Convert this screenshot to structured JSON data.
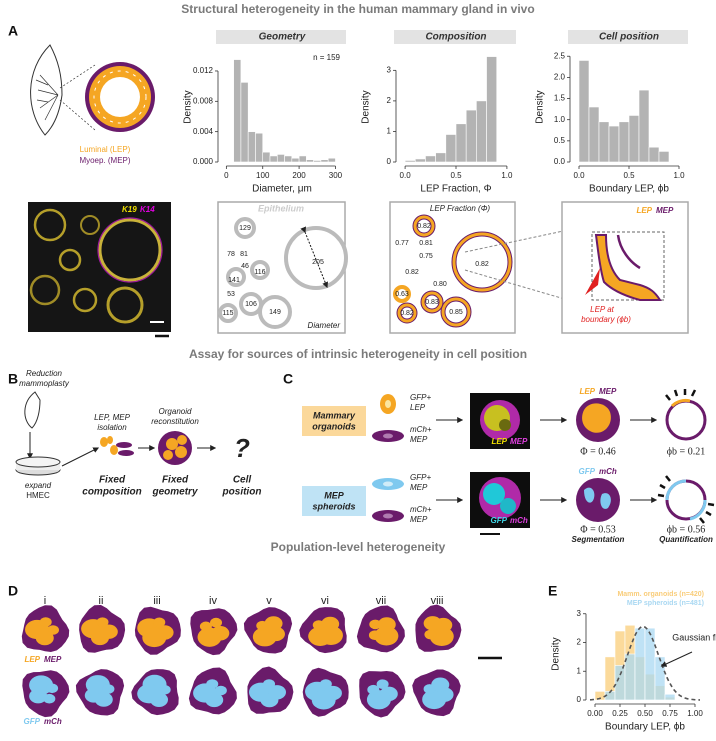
{
  "sections": [
    "Structural heterogeneity in the human mammary gland in vivo",
    "Assay for sources of intrinsic heterogeneity in cell position",
    "Population-level heterogeneity"
  ],
  "panel_a": {
    "label": "A",
    "schematic": {
      "luminal": "Luminal (LEP)",
      "myoep": "Myoep. (MEP)"
    },
    "charts": [
      {
        "type": "histogram",
        "header": "Geometry",
        "ylabel": "Density",
        "xlabel": "Diameter, μm",
        "note": "n = 159",
        "bins": [
          20,
          40,
          60,
          80,
          100,
          120,
          140,
          160,
          180,
          200,
          220,
          240,
          260,
          280,
          300
        ],
        "values": [
          0.0135,
          0.0105,
          0.004,
          0.0038,
          0.0013,
          0.0008,
          0.001,
          0.0008,
          0.0005,
          0.0008,
          0.0003,
          0.0002,
          0.0003,
          0.0005
        ],
        "color": "#b3b3b3",
        "xlim": [
          -12,
          318
        ],
        "ylim": [
          0,
          0.0145
        ],
        "xticks": [
          0,
          100,
          200,
          300
        ],
        "yticks": [
          {
            "value": 0,
            "label": "0.000"
          },
          0.004,
          0.008,
          0.012
        ]
      },
      {
        "type": "histogram",
        "header": "Composition",
        "ylabel": "Density",
        "xlabel": "LEP Fraction, Φ",
        "bins": [
          0.0,
          0.1,
          0.2,
          0.3,
          0.4,
          0.5,
          0.6,
          0.7,
          0.8,
          0.9
        ],
        "values": [
          0.05,
          0.1,
          0.2,
          0.3,
          0.9,
          1.25,
          1.7,
          2.0,
          3.45
        ],
        "color": "#b3b3b3",
        "xlim": [
          -0.05,
          1.05
        ],
        "ylim": [
          0,
          3.6
        ],
        "xticks": [
          {
            "value": 0,
            "label": "0.0"
          },
          0.5,
          {
            "value": 1,
            "label": "1.0"
          }
        ],
        "yticks": [
          0,
          1,
          2,
          3
        ]
      },
      {
        "type": "histogram",
        "header": "Cell position",
        "ylabel": "Density",
        "xlabel": "Boundary LEP, ϕb",
        "bins": [
          0.0,
          0.1,
          0.2,
          0.3,
          0.4,
          0.5,
          0.6,
          0.7,
          0.8,
          0.9
        ],
        "values": [
          2.4,
          1.3,
          0.95,
          0.85,
          0.95,
          1.1,
          1.7,
          0.35,
          0.25
        ],
        "color": "#b3b3b3",
        "xlim": [
          -0.05,
          1.05
        ],
        "ylim": [
          0,
          2.6
        ],
        "xticks": [
          {
            "value": 0,
            "label": "0.0"
          },
          0.5,
          {
            "value": 1,
            "label": "1.0"
          }
        ],
        "yticks": [
          {
            "value": 0,
            "label": "0.0"
          },
          0.5,
          {
            "value": 1,
            "label": "1.0"
          },
          1.5,
          {
            "value": 2,
            "label": "2.0"
          },
          2.5
        ]
      }
    ],
    "images": {
      "stain": [
        "K19",
        "K14"
      ],
      "epithelium": {
        "title": "Epithelium",
        "diameters": [
          129,
          78,
          81,
          46,
          116,
          205,
          141,
          53,
          106,
          115,
          149
        ],
        "caption": "Diameter"
      },
      "composition": {
        "title": "LEP Fraction (Φ)",
        "fractions": [
          "0.82",
          "0.77",
          "0.81",
          "0.75",
          "0.82",
          "0.80",
          "0.82",
          "0.63",
          "0.83",
          "0.82",
          "0.85"
        ]
      },
      "position": {
        "legend": [
          "LEP",
          "MEP"
        ],
        "annotation": [
          "LEP at",
          "boundary (ϕb)"
        ]
      }
    }
  },
  "panel_b": {
    "label": "B",
    "source": [
      "Reduction",
      "mammoplasty"
    ],
    "expand": [
      "expand",
      "HMEC"
    ],
    "isolation": [
      "LEP, MEP",
      "isolation"
    ],
    "reconstitution": [
      "Organoid",
      "reconstitution"
    ],
    "outcomes": [
      [
        "Fixed",
        "composition"
      ],
      [
        "Fixed",
        "geometry"
      ],
      [
        "Cell",
        "position"
      ]
    ],
    "question": "?"
  },
  "panel_c": {
    "label": "C",
    "rows": [
      {
        "name": [
          "Mammary",
          "organoids"
        ],
        "cells": [
          [
            "GFP+",
            "LEP"
          ],
          [
            "mCh+",
            "MEP"
          ]
        ],
        "channels": [
          "LEP",
          "MEP"
        ],
        "composition": "Φ = 0.46",
        "position": "ϕb = 0.21"
      },
      {
        "name": [
          "MEP",
          "spheroids"
        ],
        "cells": [
          [
            "GFP+",
            "MEP"
          ],
          [
            "mCh+",
            "MEP"
          ]
        ],
        "channels": [
          "GFP",
          "mCh"
        ],
        "composition": "Φ = 0.53",
        "position": "ϕb = 0.56"
      }
    ],
    "steps": [
      "Segmentation",
      "Quantification"
    ]
  },
  "panel_d": {
    "label": "D",
    "columns": [
      "i",
      "ii",
      "iii",
      "iv",
      "v",
      "vi",
      "vii",
      "viii"
    ],
    "legends": [
      [
        "LEP",
        "MEP"
      ],
      [
        "GFP",
        "mCh"
      ]
    ]
  },
  "panel_e": {
    "label": "E",
    "chart_data": {
      "type": "histogram",
      "xlabel": "Boundary LEP, ϕb",
      "ylabel": "Density",
      "bins": [
        0.0,
        0.1,
        0.2,
        0.3,
        0.4,
        0.5,
        0.6,
        0.7,
        0.8
      ],
      "series": [
        {
          "name": "Mamm. organoids (n=420)",
          "color": "#f9cd7a",
          "values": [
            0.3,
            1.5,
            2.4,
            2.6,
            1.5,
            0.9,
            0.5,
            0.1
          ]
        },
        {
          "name": "MEP spheroids (n=481)",
          "color": "#a9d8f2",
          "values": [
            0,
            0.3,
            1.2,
            1.6,
            2.5,
            2.5,
            1.5,
            0.2
          ]
        }
      ],
      "fit": {
        "label": "Gaussian fit",
        "mean": 0.48,
        "sd": 0.156
      },
      "xlim": [
        -0.05,
        1.05
      ],
      "ylim": [
        0,
        3.2
      ],
      "xticks": [
        {
          "value": 0,
          "label": "0.00"
        },
        0.25,
        {
          "value": 0.5,
          "label": "0.50"
        },
        0.75,
        {
          "value": 1,
          "label": "1.00"
        }
      ],
      "yticks": [
        0,
        1,
        2,
        3
      ]
    }
  }
}
